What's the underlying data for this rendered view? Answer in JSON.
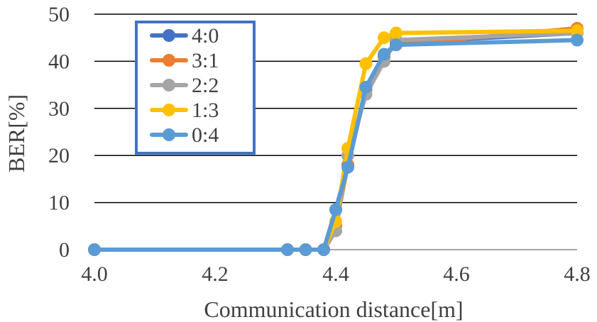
{
  "chart_data": {
    "type": "line",
    "title": "",
    "xlabel": "Communication distance[m]",
    "ylabel": "BER[%]",
    "xlim": [
      4.0,
      4.8
    ],
    "ylim": [
      0,
      50
    ],
    "xticks": [
      "4.0",
      "4.2",
      "4.4",
      "4.6",
      "4.8"
    ],
    "yticks": [
      "0",
      "10",
      "20",
      "30",
      "40",
      "50"
    ],
    "grid": "horizontal",
    "legend_position": "top-left",
    "x": [
      4.0,
      4.32,
      4.35,
      4.38,
      4.4,
      4.42,
      4.45,
      4.48,
      4.5,
      4.8
    ],
    "series": [
      {
        "name": "4:0",
        "color": "#4472C4",
        "values": [
          0,
          0,
          0,
          0,
          8.5,
          18,
          34,
          41,
          44,
          46
        ]
      },
      {
        "name": "3:1",
        "color": "#ED7D31",
        "values": [
          0,
          0,
          0,
          0,
          5,
          18,
          34,
          41,
          43.5,
          47
        ]
      },
      {
        "name": "2:2",
        "color": "#A5A5A5",
        "values": [
          0,
          0,
          0,
          0,
          4,
          20,
          33,
          40,
          44.5,
          46
        ]
      },
      {
        "name": "1:3",
        "color": "#FFC000",
        "values": [
          0,
          0,
          0,
          0,
          6,
          21.5,
          39.5,
          45,
          46,
          46.5
        ]
      },
      {
        "name": "0:4",
        "color": "#5B9BD5",
        "values": [
          0,
          0,
          0,
          0,
          8.5,
          17.5,
          34.5,
          41.5,
          43.5,
          44.5
        ]
      }
    ]
  }
}
